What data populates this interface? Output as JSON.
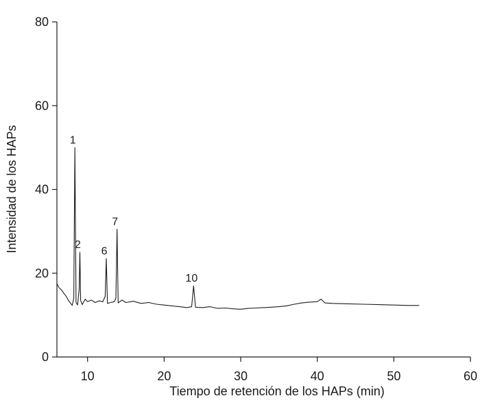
{
  "chart_data": {
    "type": "line",
    "title": "",
    "xlabel": "Tiempo de retención de los HAPs (min)",
    "ylabel": "Intensidad de los HAPs",
    "xlim": [
      6,
      60
    ],
    "ylim": [
      0,
      80
    ],
    "xticks": [
      10,
      20,
      30,
      40,
      50,
      60
    ],
    "yticks": [
      0,
      20,
      40,
      60,
      80
    ],
    "grid": false,
    "line_color": "#1a1a1a",
    "series": [
      {
        "x": [
          6.0,
          6.3,
          6.6,
          6.9,
          7.2,
          7.5,
          7.8,
          8.0,
          8.2,
          8.35,
          8.5,
          8.7,
          8.9,
          9.0,
          9.1,
          9.3,
          9.7,
          10.0,
          10.5,
          11.0,
          11.5,
          12.0,
          12.3,
          12.45,
          12.6,
          13.0,
          13.5,
          13.7,
          13.85,
          14.0,
          14.5,
          15.0,
          16.0,
          17.0,
          18.0,
          19.0,
          20.0,
          21.0,
          22.0,
          23.0,
          23.6,
          23.85,
          24.1,
          25.0,
          26.0,
          27.0,
          28.0,
          29.0,
          30.0,
          31.0,
          32.0,
          33.0,
          34.0,
          35.0,
          36.0,
          37.0,
          38.0,
          39.0,
          40.0,
          40.5,
          41.0,
          42.0,
          44.0,
          46.0,
          48.0,
          50.0,
          52.0,
          53.3
        ],
        "y": [
          17.5,
          16.5,
          16.0,
          15.2,
          14.5,
          13.5,
          12.8,
          12.3,
          14.0,
          50.0,
          13.0,
          12.4,
          16.0,
          25.0,
          13.5,
          12.5,
          13.8,
          13.2,
          13.6,
          13.0,
          13.4,
          13.2,
          14.5,
          23.5,
          12.8,
          13.0,
          13.2,
          14.0,
          30.5,
          12.9,
          13.6,
          13.0,
          13.3,
          12.8,
          13.0,
          12.6,
          12.4,
          12.2,
          12.0,
          11.8,
          12.0,
          17.0,
          11.9,
          11.8,
          12.0,
          11.6,
          11.7,
          11.5,
          11.4,
          11.6,
          11.7,
          11.8,
          11.9,
          12.0,
          12.2,
          12.6,
          12.9,
          13.1,
          13.2,
          13.8,
          12.9,
          12.8,
          12.7,
          12.6,
          12.5,
          12.4,
          12.3,
          12.3
        ]
      }
    ],
    "peak_labels": [
      {
        "text": "1",
        "x": 8.35,
        "y": 50.0
      },
      {
        "text": "2",
        "x": 9.0,
        "y": 25.0
      },
      {
        "text": "6",
        "x": 12.45,
        "y": 23.5
      },
      {
        "text": "7",
        "x": 13.85,
        "y": 30.5
      },
      {
        "text": "10",
        "x": 23.85,
        "y": 17.0
      }
    ]
  }
}
